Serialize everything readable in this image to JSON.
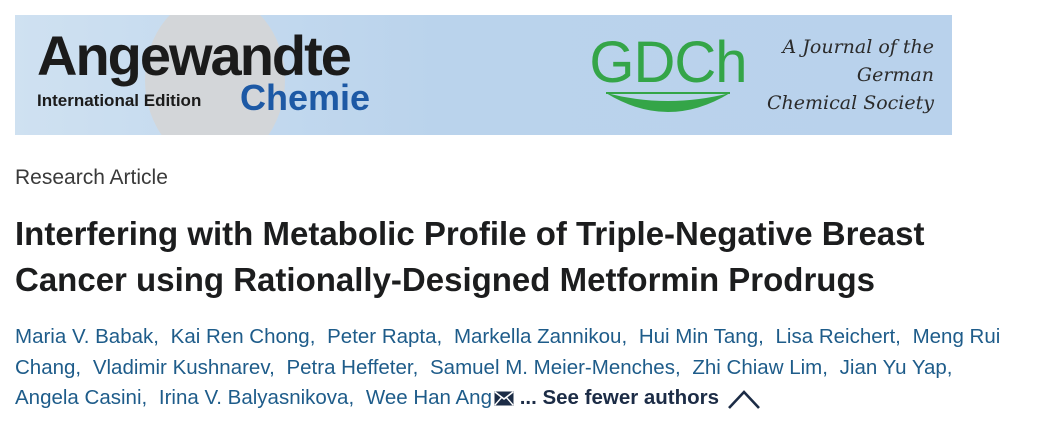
{
  "banner": {
    "logo_word1": "Angewandte",
    "logo_word2": "Chemie",
    "edition": "International Edition",
    "society_logo": "GDCh",
    "tagline": [
      "A Journal of the",
      "German",
      "Chemical Society"
    ],
    "colors": {
      "background": "#bad3ec",
      "chemie": "#1d59a5",
      "gdch": "#34a548"
    }
  },
  "article": {
    "type": "Research Article",
    "title": "Interfering with Metabolic Profile of Triple-Negative Breast Cancer using Rationally-Designed Metformin Prodrugs"
  },
  "authors": [
    "Maria V. Babak",
    "Kai Ren Chong",
    "Peter Rapta",
    "Markella Zannikou",
    "Hui Min Tang",
    "Lisa Reichert",
    "Meng Rui Chang",
    "Vladimir Kushnarev",
    "Petra Heffeter",
    "Samuel M. Meier-Menches",
    "Zhi Chiaw Lim",
    "Jian Yu Yap",
    "Angela Casini",
    "Irina V. Balyasnikova",
    "Wee Han Ang"
  ],
  "see_fewer": "... See fewer authors",
  "icons": {
    "corresponding": "envelope-icon",
    "collapse": "chevron-up-icon"
  }
}
